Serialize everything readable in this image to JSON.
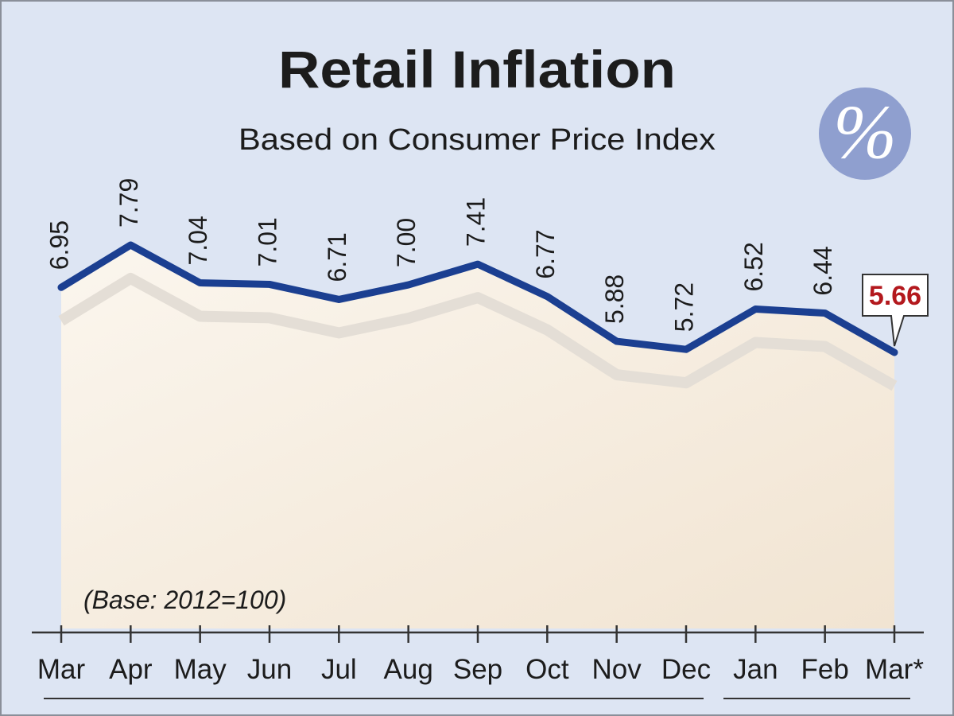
{
  "chart_data": {
    "type": "line",
    "title": "Retail Inflation",
    "subtitle": "Based on Consumer Price Index",
    "icon": "%",
    "note": "(Base: 2012=100)",
    "categories": [
      "Mar",
      "Apr",
      "May",
      "Jun",
      "Jul",
      "Aug",
      "Sep",
      "Oct",
      "Nov",
      "Dec",
      "Jan",
      "Feb",
      "Mar*"
    ],
    "values": [
      6.95,
      7.79,
      7.04,
      7.01,
      6.71,
      7.0,
      7.41,
      6.77,
      5.88,
      5.72,
      6.52,
      6.44,
      5.66
    ],
    "value_labels": [
      "6.95",
      "7.79",
      "7.04",
      "7.01",
      "6.71",
      "7.00",
      "7.41",
      "6.77",
      "5.88",
      "5.72",
      "6.52",
      "6.44",
      "5.66"
    ],
    "color": "#1b3f91",
    "highlight_color": "#b3181d"
  }
}
